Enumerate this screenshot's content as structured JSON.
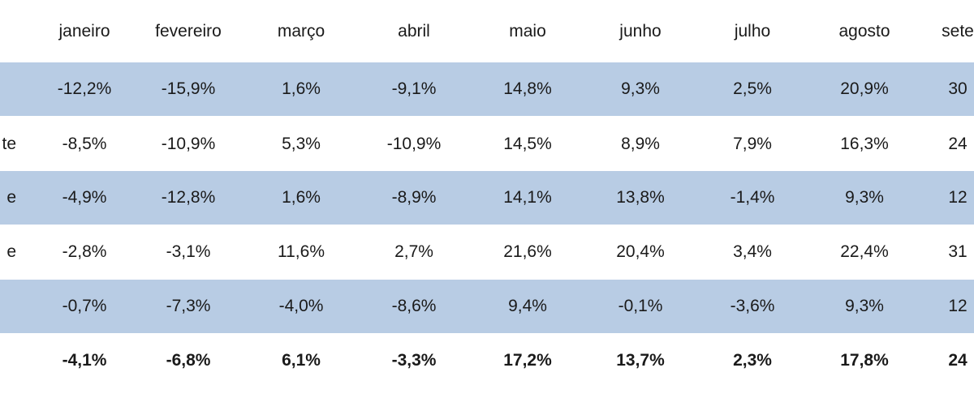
{
  "chart_data": {
    "type": "table",
    "columns": [
      "janeiro",
      "fevereiro",
      "março",
      "abril",
      "maio",
      "junho",
      "julho",
      "agosto",
      "sete"
    ],
    "rows": [
      {
        "label": "",
        "values": [
          "-12,2%",
          "-15,9%",
          "1,6%",
          "-9,1%",
          "14,8%",
          "9,3%",
          "2,5%",
          "20,9%",
          "30"
        ]
      },
      {
        "label": "te",
        "values": [
          "-8,5%",
          "-10,9%",
          "5,3%",
          "-10,9%",
          "14,5%",
          "8,9%",
          "7,9%",
          "16,3%",
          "24"
        ]
      },
      {
        "label": "e",
        "values": [
          "-4,9%",
          "-12,8%",
          "1,6%",
          "-8,9%",
          "14,1%",
          "13,8%",
          "-1,4%",
          "9,3%",
          "12"
        ]
      },
      {
        "label": "e",
        "values": [
          "-2,8%",
          "-3,1%",
          "11,6%",
          "2,7%",
          "21,6%",
          "20,4%",
          "3,4%",
          "22,4%",
          "31"
        ]
      },
      {
        "label": "",
        "values": [
          "-0,7%",
          "-7,3%",
          "-4,0%",
          "-8,6%",
          "9,4%",
          "-0,1%",
          "-3,6%",
          "9,3%",
          "12"
        ]
      },
      {
        "label": "",
        "values": [
          "-4,1%",
          "-6,8%",
          "6,1%",
          "-3,3%",
          "17,2%",
          "13,7%",
          "2,3%",
          "17,8%",
          "24"
        ],
        "bold": true
      }
    ],
    "shading_color": "#b8cce4"
  }
}
